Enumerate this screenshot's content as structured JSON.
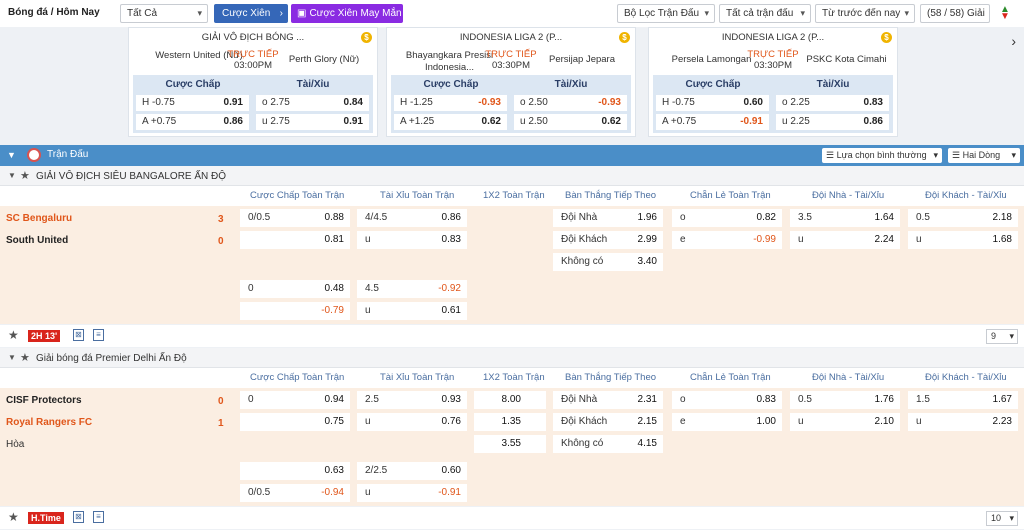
{
  "header": {
    "title": "Bóng đá / Hôm Nay",
    "filter_all": "Tất Cả",
    "parlay": "Cược Xiên",
    "lucky_parlay": "Cược Xiên May Mắn",
    "match_filter": "Bộ Lọc Trận Đấu",
    "all_matches": "Tất cả trận đấu",
    "sort": "Từ trước đến nay",
    "count": "(58 / 58) Giải"
  },
  "featured": [
    {
      "league": "GIẢI VÔ ĐỊCH BÓNG ...",
      "home": "Western United (Nữ)",
      "status": "TRỰC TIẾP",
      "time": "03:00PM",
      "away": "Perth Glory (Nữ)",
      "hdp_head": "Cược Chấp",
      "ou_head": "Tài/Xỉu",
      "rows": [
        {
          "hl": "H -0.75",
          "hv": "0.91",
          "ol": "o 2.75",
          "ov": "0.84"
        },
        {
          "hl": "A +0.75",
          "hv": "0.86",
          "ol": "u 2.75",
          "ov": "0.91"
        }
      ]
    },
    {
      "league": "INDONESIA LIGA 2 (P...",
      "home": "Bhayangkara Presisi Indonesia...",
      "status": "TRỰC TIẾP",
      "time": "03:30PM",
      "away": "Persijap Jepara",
      "hdp_head": "Cược Chấp",
      "ou_head": "Tài/Xỉu",
      "rows": [
        {
          "hl": "H -1.25",
          "hv": "-0.93",
          "ol": "o 2.50",
          "ov": "-0.93"
        },
        {
          "hl": "A +1.25",
          "hv": "0.62",
          "ol": "u 2.50",
          "ov": "0.62"
        }
      ]
    },
    {
      "league": "INDONESIA LIGA 2 (P...",
      "home": "Persela Lamongan",
      "status": "TRỰC TIẾP",
      "time": "03:30PM",
      "away": "PSKC Kota Cimahi",
      "hdp_head": "Cược Chấp",
      "ou_head": "Tài/Xỉu",
      "rows": [
        {
          "hl": "H -0.75",
          "hv": "0.60",
          "ol": "o 2.25",
          "ov": "0.83"
        },
        {
          "hl": "A +0.75",
          "hv": "-0.91",
          "ol": "u 2.25",
          "ov": "0.86"
        }
      ]
    }
  ],
  "section": {
    "title": "Trận Đấu",
    "view_select": "Lựa chọn bình thường",
    "lines_select": "Hai Dòng"
  },
  "columns": [
    "Cược Chấp Toàn Trận",
    "Tài Xỉu Toàn Trận",
    "1X2 Toàn Trận",
    "Bàn Thắng Tiếp Theo",
    "Chẵn Lẻ Toàn Trận",
    "Đội Nhà - Tài/Xỉu",
    "Đội Khách - Tài/Xỉu"
  ],
  "leagues": [
    {
      "name": "GIẢI VÔ ĐỊCH SIÊU BANGALORE ẤN ĐỘ",
      "home": "SC Bengaluru",
      "away": "South United",
      "hs": "3",
      "as": "0",
      "draw": "",
      "hdp1": {
        "l": "0/0.5",
        "v1": "0.88",
        "v2": "0.81"
      },
      "ou1": {
        "l": "4/4.5",
        "v1": "0.86",
        "l2": "u",
        "v2": "0.83"
      },
      "x12": {
        "v1": "",
        "v2": "",
        "v3": ""
      },
      "ng": [
        {
          "l": "Đội Nhà",
          "v": "1.96"
        },
        {
          "l": "Đội Khách",
          "v": "2.99"
        },
        {
          "l": "Không có",
          "v": "3.40"
        }
      ],
      "oe": [
        {
          "l": "o",
          "v": "0.82"
        },
        {
          "l": "e",
          "v": "-0.99"
        }
      ],
      "hou": [
        {
          "l": "3.5",
          "v": "1.64"
        },
        {
          "l": "u",
          "v": "2.24"
        }
      ],
      "aou": [
        {
          "l": "0.5",
          "v": "2.18"
        },
        {
          "l": "u",
          "v": "1.68"
        }
      ],
      "hdp2": {
        "l": "0",
        "v1": "0.48",
        "v2": "-0.79"
      },
      "ou2": {
        "l": "4.5",
        "v1": "-0.92",
        "l2": "u",
        "v2": "0.61"
      },
      "time": "2H 13'",
      "more": "9"
    },
    {
      "name": "Giải bóng đá Premier Delhi Ấn Độ",
      "home": "CISF Protectors",
      "away": "Royal Rangers FC",
      "hs": "0",
      "as": "1",
      "draw": "Hòa",
      "hdp1": {
        "l": "0",
        "v1": "0.94",
        "v2": "0.75"
      },
      "ou1": {
        "l": "2.5",
        "v1": "0.93",
        "l2": "u",
        "v2": "0.76"
      },
      "x12": {
        "v1": "8.00",
        "v2": "1.35",
        "v3": "3.55"
      },
      "ng": [
        {
          "l": "Đội Nhà",
          "v": "2.31"
        },
        {
          "l": "Đội Khách",
          "v": "2.15"
        },
        {
          "l": "Không có",
          "v": "4.15"
        }
      ],
      "oe": [
        {
          "l": "o",
          "v": "0.83"
        },
        {
          "l": "e",
          "v": "1.00"
        }
      ],
      "hou": [
        {
          "l": "0.5",
          "v": "1.76"
        },
        {
          "l": "u",
          "v": "2.10"
        }
      ],
      "aou": [
        {
          "l": "1.5",
          "v": "1.67"
        },
        {
          "l": "u",
          "v": "2.23"
        }
      ],
      "hdp2": {
        "l": "0/0.5",
        "v1": "0.63",
        "v2": "-0.94"
      },
      "ou2": {
        "l": "2/2.5",
        "v1": "0.60",
        "l2": "u",
        "v2": "-0.91"
      },
      "time": "H.Time",
      "more": "10"
    }
  ]
}
